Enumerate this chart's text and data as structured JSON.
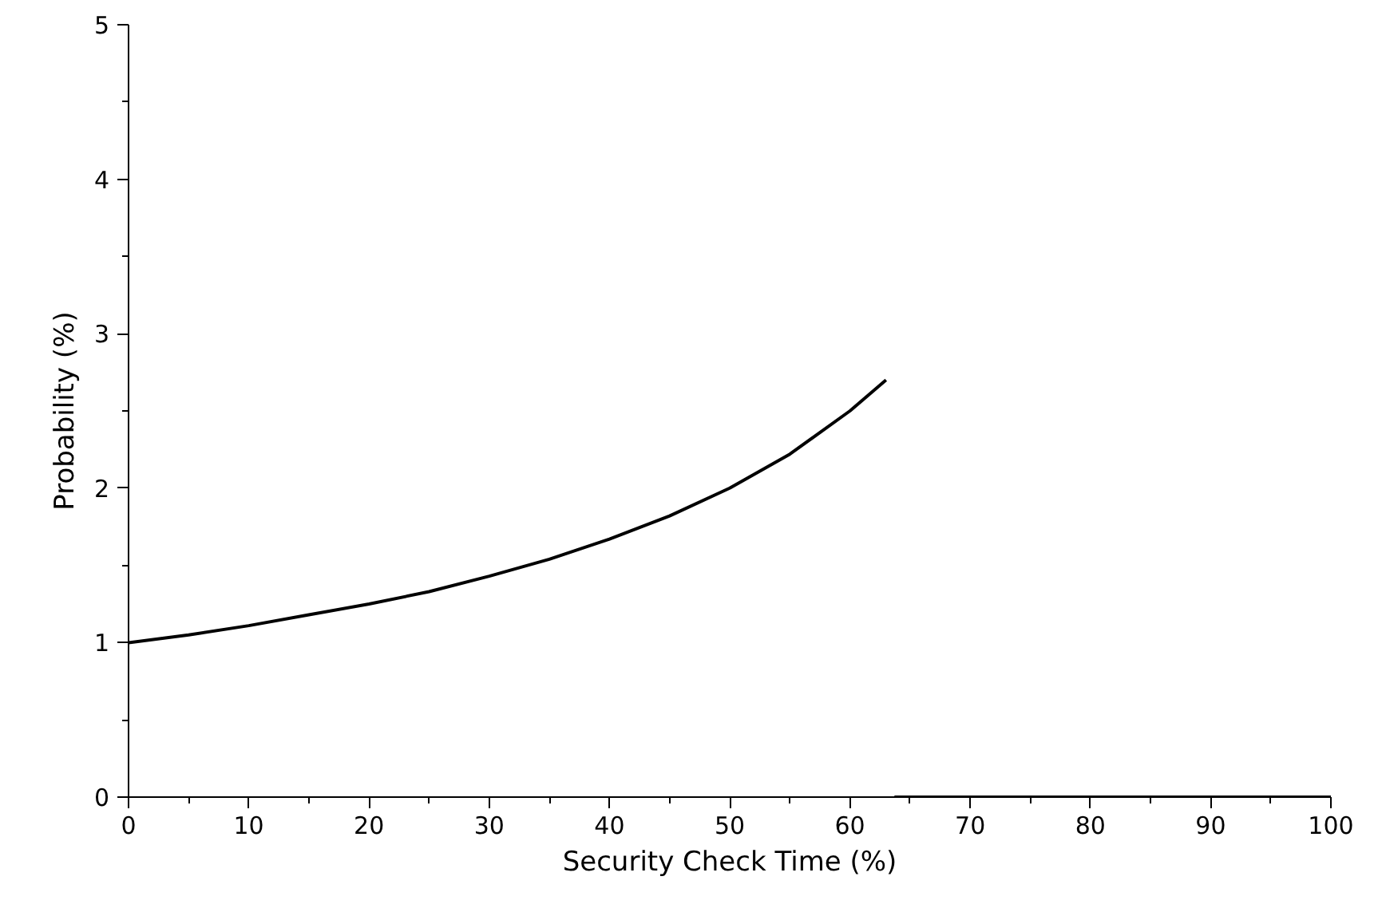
{
  "chart_data": {
    "type": "line",
    "xlabel": "Security Check Time (%)",
    "ylabel": "Probability (%)",
    "xlim": [
      0,
      100
    ],
    "ylim": [
      0,
      5
    ],
    "xticks": [
      0,
      {
        "value": 5,
        "label": null
      },
      10,
      {
        "value": 15,
        "label": null
      },
      20,
      {
        "value": 25,
        "label": null
      },
      30,
      {
        "value": 35,
        "label": null
      },
      40,
      {
        "value": 45,
        "label": null
      },
      50,
      {
        "value": 55,
        "label": null
      },
      60,
      {
        "value": 65,
        "label": null
      },
      70,
      {
        "value": 75,
        "label": null
      },
      80,
      {
        "value": 85,
        "label": null
      },
      90,
      {
        "value": 95,
        "label": null
      },
      100
    ],
    "yticks": [
      0,
      {
        "value": 0.5,
        "label": null
      },
      1,
      {
        "value": 1.5,
        "label": null
      },
      2,
      {
        "value": 2.5,
        "label": null
      },
      3,
      {
        "value": 3.5,
        "label": null
      },
      4,
      {
        "value": 4.5,
        "label": null
      },
      5
    ],
    "grid": false,
    "marker": "none",
    "line_style": "solid",
    "series": [
      {
        "color": "#000000",
        "x": [
          0,
          5,
          10,
          15,
          20,
          25,
          30,
          35,
          40,
          45,
          50,
          55,
          60,
          63
        ],
        "values": [
          1.0,
          1.05,
          1.11,
          1.18,
          1.25,
          1.33,
          1.43,
          1.54,
          1.67,
          1.82,
          2.0,
          2.22,
          2.5,
          2.7
        ]
      },
      {
        "color": "#000000",
        "x": [
          63.7,
          100
        ],
        "values": [
          0,
          0
        ]
      }
    ]
  }
}
